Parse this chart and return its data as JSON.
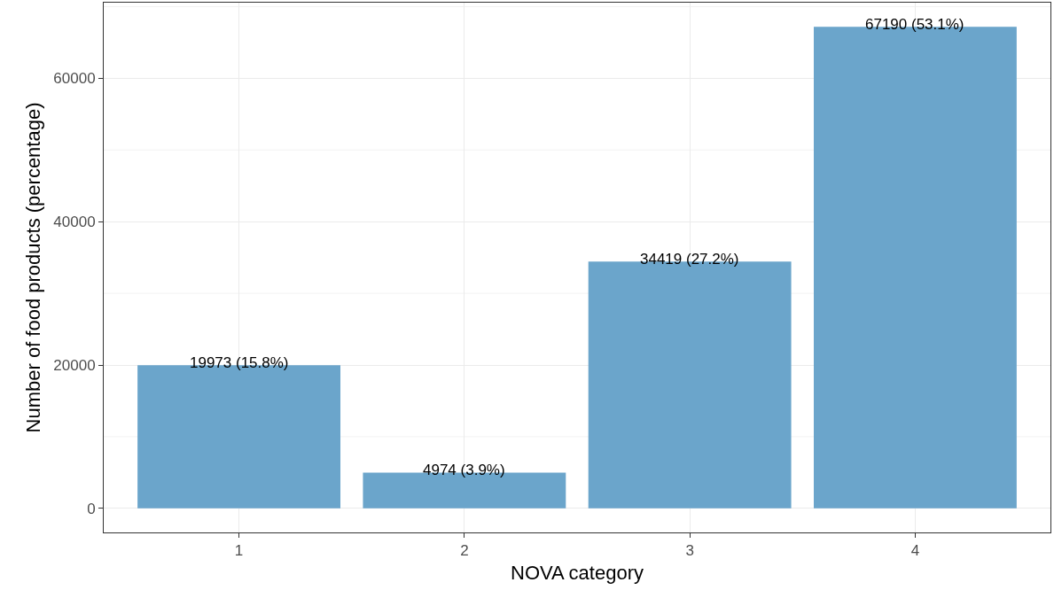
{
  "chart_data": {
    "type": "bar",
    "xlabel": "NOVA category",
    "ylabel": "Number of food products (percentage)",
    "categories": [
      "1",
      "2",
      "3",
      "4"
    ],
    "values": [
      19973,
      4974,
      34419,
      67190
    ],
    "value_labels": [
      "19973 (15.8%)",
      "4974 (3.9%)",
      "34419 (27.2%)",
      "67190 (53.1%)"
    ],
    "color": "#6ba5cb",
    "ylim": [
      -3360,
      70550
    ],
    "yticks": [
      0,
      {
        "value": 10000,
        "label": null
      },
      20000,
      {
        "value": 30000,
        "label": null
      },
      40000,
      {
        "value": 50000,
        "label": null
      },
      60000,
      {
        "value": 70000,
        "label": null
      }
    ],
    "grid": true,
    "legend": false
  }
}
